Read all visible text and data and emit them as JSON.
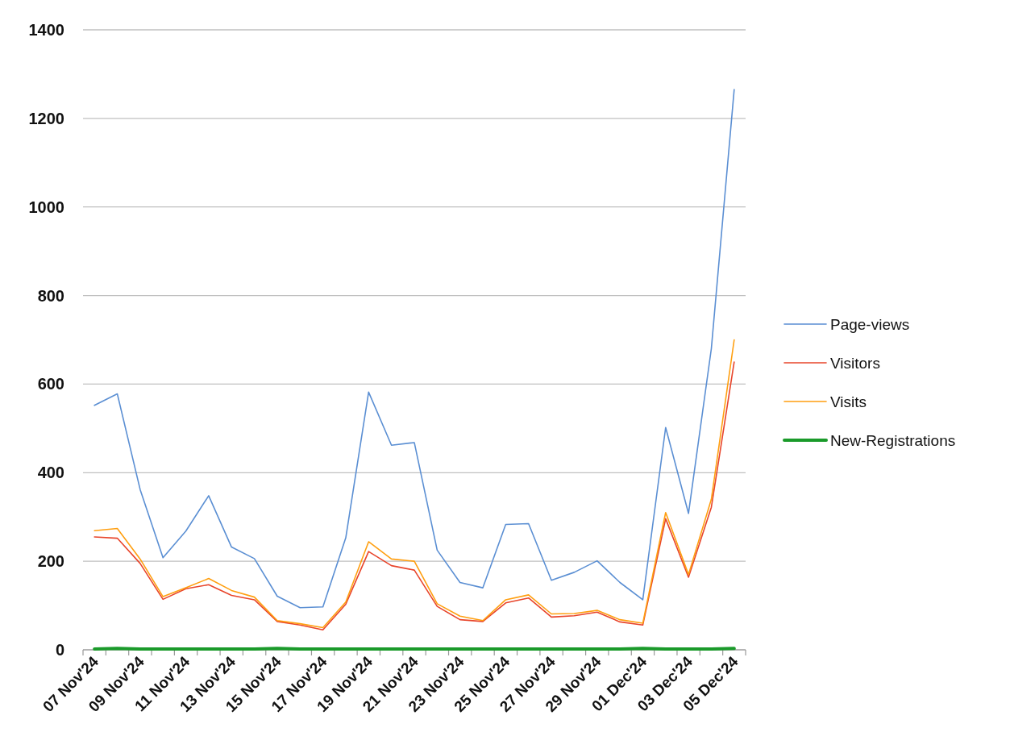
{
  "chart_data": {
    "type": "line",
    "categories": [
      "07 Nov'24",
      null,
      "09 Nov'24",
      null,
      "11 Nov'24",
      null,
      "13 Nov'24",
      null,
      "15 Nov'24",
      null,
      "17 Nov'24",
      null,
      "19 Nov'24",
      null,
      "21 Nov'24",
      null,
      "23 Nov'24",
      null,
      "25 Nov'24",
      null,
      "27 Nov'24",
      null,
      "29 Nov'24",
      null,
      "01 Dec'24",
      null,
      "03 Dec'24",
      null,
      "05 Dec'24"
    ],
    "series": [
      {
        "name": "Page-views",
        "color": "#5b8fd3",
        "values": [
          552,
          578,
          362,
          208,
          268,
          348,
          232,
          206,
          121,
          95,
          97,
          253,
          582,
          462,
          468,
          225,
          152,
          140,
          283,
          285,
          157,
          175,
          201,
          152,
          113,
          502,
          308,
          680,
          1265
        ]
      },
      {
        "name": "Visitors",
        "color": "#e8452b",
        "values": [
          255,
          252,
          195,
          114,
          138,
          147,
          123,
          113,
          64,
          56,
          45,
          103,
          222,
          190,
          180,
          98,
          68,
          64,
          106,
          117,
          74,
          77,
          85,
          63,
          56,
          296,
          164,
          322,
          650
        ]
      },
      {
        "name": "Visits",
        "color": "#ff9f10",
        "values": [
          269,
          274,
          205,
          120,
          140,
          161,
          134,
          119,
          66,
          59,
          50,
          108,
          244,
          205,
          200,
          104,
          76,
          66,
          113,
          124,
          81,
          82,
          89,
          68,
          60,
          310,
          170,
          340,
          700
        ]
      },
      {
        "name": "New-Registrations",
        "color": "#1a9a2a",
        "values": [
          2,
          3,
          2,
          2,
          2,
          2,
          2,
          2,
          3,
          2,
          2,
          2,
          2,
          2,
          2,
          2,
          2,
          2,
          2,
          2,
          2,
          2,
          2,
          2,
          3,
          2,
          2,
          2,
          3
        ]
      }
    ],
    "ylim": [
      0,
      1400
    ],
    "yticks": [
      0,
      200,
      400,
      600,
      800,
      1000,
      1200,
      1400
    ],
    "grid": "y",
    "legend": "right",
    "marker": "none",
    "line_style": "solid"
  }
}
